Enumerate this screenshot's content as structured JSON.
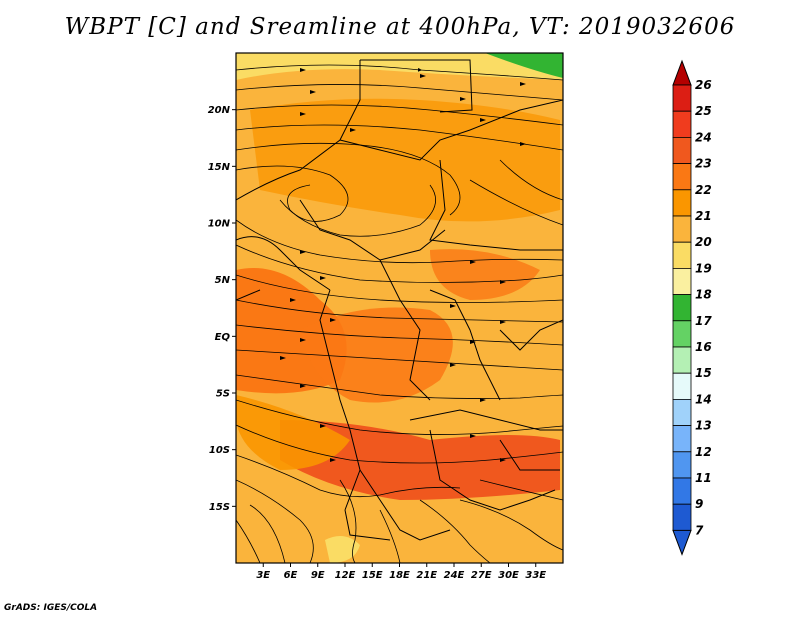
{
  "figure": {
    "title": "WBPT [C] and Sreamline at 400hPa, VT: 2019032606",
    "credit": "GrADS: IGES/COLA"
  },
  "map": {
    "lon_range": [
      0,
      36
    ],
    "lat_range": [
      -20,
      25
    ],
    "lat_ticks": [
      {
        "value": 20,
        "label": "20N"
      },
      {
        "value": 15,
        "label": "15N"
      },
      {
        "value": 10,
        "label": "10N"
      },
      {
        "value": 5,
        "label": "5N"
      },
      {
        "value": 0,
        "label": "EQ"
      },
      {
        "value": -5,
        "label": "5S"
      },
      {
        "value": -10,
        "label": "10S"
      },
      {
        "value": -15,
        "label": "15S"
      }
    ],
    "lon_ticks": [
      {
        "value": 3,
        "label": "3E"
      },
      {
        "value": 6,
        "label": "6E"
      },
      {
        "value": 9,
        "label": "9E"
      },
      {
        "value": 12,
        "label": "12E"
      },
      {
        "value": 15,
        "label": "15E"
      },
      {
        "value": 18,
        "label": "18E"
      },
      {
        "value": 21,
        "label": "21E"
      },
      {
        "value": 24,
        "label": "24E"
      },
      {
        "value": 27,
        "label": "27E"
      },
      {
        "value": 30,
        "label": "30E"
      },
      {
        "value": 33,
        "label": "33E"
      }
    ]
  },
  "colorbar": {
    "levels": [
      "26",
      "25",
      "24",
      "23",
      "22",
      "21",
      "20",
      "19",
      "18",
      "17",
      "16",
      "15",
      "14",
      "13",
      "12",
      "11",
      "9",
      "7"
    ],
    "colors": [
      "#b40000",
      "#dc1e14",
      "#f03c1e",
      "#f0581e",
      "#fa7814",
      "#fa9600",
      "#fab43c",
      "#fadc64",
      "#faf0a0",
      "#32b432",
      "#64d264",
      "#b4f0b4",
      "#e6fafa",
      "#a0d2fa",
      "#78b4fa",
      "#5096f0",
      "#3278e6",
      "#1e5ad2"
    ],
    "triangle_top_color": "#b40000",
    "triangle_bottom_color": "#1e5ad2"
  }
}
